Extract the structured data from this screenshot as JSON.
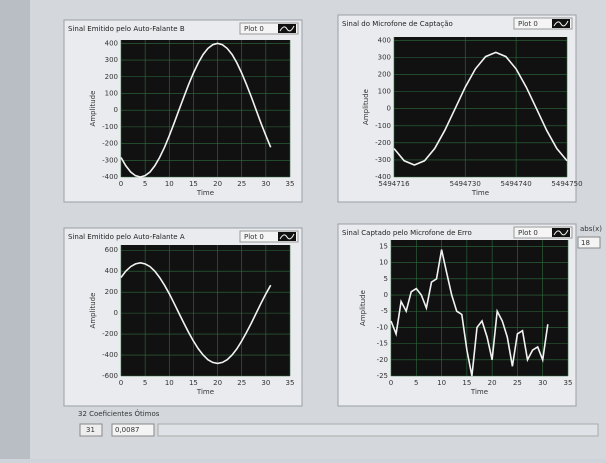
{
  "chart_data": [
    {
      "type": "line",
      "title": "Sinal Emitido pelo Auto-Falante B",
      "xlabel": "Time",
      "ylabel": "Amplitude",
      "grid": true,
      "x": [
        0,
        1,
        2,
        3,
        4,
        5,
        6,
        7,
        8,
        9,
        10,
        11,
        12,
        13,
        14,
        15,
        16,
        17,
        18,
        19,
        20,
        21,
        22,
        23,
        24,
        25,
        26,
        27,
        28,
        29,
        30,
        31
      ],
      "series": [
        {
          "name": "Plot 0",
          "color": "#f2f2f2",
          "values": [
            -283,
            -333,
            -370,
            -392,
            -400,
            -392,
            -370,
            -333,
            -283,
            -222,
            -153,
            -78,
            0,
            78,
            153,
            222,
            283,
            333,
            370,
            392,
            400,
            392,
            370,
            333,
            283,
            222,
            153,
            78,
            0,
            -78,
            -153,
            -222
          ]
        }
      ],
      "xlim": [
        0,
        35
      ],
      "xticks": [
        0,
        5,
        10,
        15,
        20,
        25,
        30,
        35
      ],
      "ylim": [
        -400,
        420
      ],
      "yticks": [
        -400,
        -300,
        -200,
        -100,
        0,
        100,
        200,
        300,
        400
      ]
    },
    {
      "type": "line",
      "title": "Sinal do Microfone de Captação",
      "xlabel": "Time",
      "ylabel": "Amplitude",
      "grid": true,
      "x": [
        5494716,
        5494718,
        5494720,
        5494722,
        5494724,
        5494726,
        5494728,
        5494730,
        5494732,
        5494734,
        5494736,
        5494738,
        5494740,
        5494742,
        5494744,
        5494746,
        5494748,
        5494750
      ],
      "series": [
        {
          "name": "Plot 0",
          "color": "#f2f2f2",
          "values": [
            -233,
            -305,
            -330,
            -305,
            -233,
            -126,
            0,
            126,
            233,
            305,
            330,
            305,
            233,
            126,
            0,
            -126,
            -233,
            -305
          ]
        }
      ],
      "xlim": [
        5494716,
        5494750
      ],
      "xticks": [
        5494716,
        5494730,
        5494740,
        5494750
      ],
      "ylim": [
        -400,
        420
      ],
      "yticks": [
        -400,
        -300,
        -200,
        -100,
        0,
        100,
        200,
        300,
        400
      ]
    },
    {
      "type": "line",
      "title": "Sinal Emitido pelo Auto-Falante A",
      "xlabel": "Time",
      "ylabel": "Amplitude",
      "grid": true,
      "x": [
        0,
        1,
        2,
        3,
        4,
        5,
        6,
        7,
        8,
        9,
        10,
        11,
        12,
        13,
        14,
        15,
        16,
        17,
        18,
        19,
        20,
        21,
        22,
        23,
        24,
        25,
        26,
        27,
        28,
        29,
        30,
        31
      ],
      "series": [
        {
          "name": "Plot 0",
          "color": "#f2f2f2",
          "values": [
            340,
            400,
            444,
            470,
            480,
            470,
            444,
            400,
            340,
            266,
            184,
            94,
            0,
            -94,
            -184,
            -266,
            -340,
            -400,
            -444,
            -470,
            -480,
            -470,
            -444,
            -400,
            -340,
            -266,
            -184,
            -94,
            0,
            94,
            184,
            266
          ]
        }
      ],
      "xlim": [
        0,
        35
      ],
      "xticks": [
        0,
        5,
        10,
        15,
        20,
        25,
        30,
        35
      ],
      "ylim": [
        -600,
        650
      ],
      "yticks": [
        -600,
        -400,
        -200,
        0,
        200,
        400,
        600
      ]
    },
    {
      "type": "line",
      "title": "Sinal Captado pelo Microfone de Erro",
      "xlabel": "Time",
      "ylabel": "Amplitude",
      "grid": true,
      "x": [
        0,
        1,
        2,
        3,
        4,
        5,
        6,
        7,
        8,
        9,
        10,
        11,
        12,
        13,
        14,
        15,
        16,
        17,
        18,
        19,
        20,
        21,
        22,
        23,
        24,
        25,
        26,
        27,
        28,
        29,
        30,
        31
      ],
      "series": [
        {
          "name": "Plot 0",
          "color": "#f2f2f2",
          "values": [
            -8,
            -12,
            -2,
            -5,
            1,
            2,
            0,
            -4,
            4,
            5,
            14,
            7,
            0,
            -5,
            -6,
            -17,
            -25,
            -10,
            -8,
            -13,
            -20,
            -5,
            -8,
            -13,
            -22,
            -12,
            -11,
            -20,
            -17,
            -16,
            -20,
            -9
          ]
        }
      ],
      "xlim": [
        0,
        35
      ],
      "xticks": [
        0,
        5,
        10,
        15,
        20,
        25,
        30,
        35
      ],
      "ylim": [
        -25,
        17
      ],
      "yticks": [
        -25,
        -20,
        -15,
        -10,
        -5,
        0,
        5,
        10,
        15
      ]
    }
  ],
  "indicator": {
    "label": "abs(x)",
    "value": "18"
  },
  "array": {
    "label": "32 Coeficientes Ótimos",
    "index": "31",
    "value": "0,0087"
  }
}
